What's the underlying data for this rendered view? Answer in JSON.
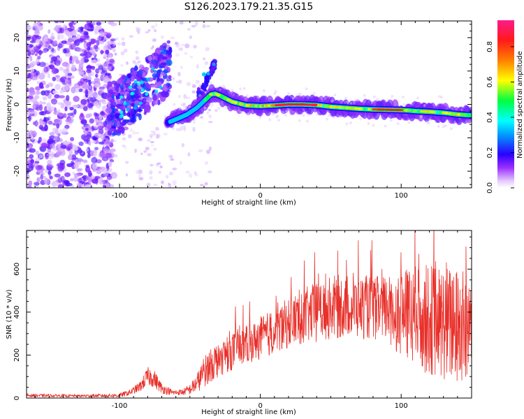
{
  "figure": {
    "title": "S126.2023.179.21.35.G15"
  },
  "chart_data": [
    {
      "type": "heatmap",
      "xlabel": "Height of straight line (km)",
      "ylabel": "Frequency (Hz)",
      "xlim": [
        -166,
        150
      ],
      "ylim": [
        -25,
        25
      ],
      "xticks": [
        -100,
        0,
        100
      ],
      "xtick_labels": [
        "-100",
        "0",
        "100"
      ],
      "yticks": [
        -20,
        -10,
        0,
        10,
        20
      ],
      "ytick_labels": [
        "-20",
        "-10",
        "0",
        "10",
        "20"
      ],
      "grid": false,
      "colorbar": {
        "label": "Normalized spectral amplitude",
        "range": [
          0,
          0.95
        ],
        "ticks": [
          0.0,
          0.2,
          0.4,
          0.6,
          0.8
        ],
        "tick_labels": [
          "0.0",
          "0.2",
          "0.4",
          "0.6",
          "0.8"
        ],
        "colormap": "hsv-like: white, purple, blue, cyan, green, yellow, orange, red, magenta"
      },
      "ridge": {
        "x": [
          -66,
          -60,
          -52,
          -45,
          -40,
          -35,
          -32,
          -28,
          -20,
          -10,
          0,
          10,
          20,
          30,
          40,
          50,
          60,
          70,
          80,
          90,
          100,
          105,
          110,
          120,
          130,
          140,
          150
        ],
        "y": [
          -5.5,
          -4.5,
          -3,
          -1,
          1,
          3,
          3.2,
          2.5,
          0.8,
          -0.3,
          -0.5,
          -0.3,
          0,
          0,
          -0.2,
          -0.7,
          -1,
          -1.3,
          -1.5,
          -1.6,
          -1.7,
          -1.8,
          -2,
          -2.2,
          -2.5,
          -3,
          -3.3
        ]
      },
      "branch": {
        "x": [
          -42,
          -39,
          -36,
          -33
        ],
        "y": [
          3,
          6,
          9,
          12
        ]
      },
      "cloud": {
        "x": [
          -105,
          -98,
          -92,
          -85,
          -80,
          -75,
          -70,
          -66
        ],
        "y": [
          -1.5,
          0,
          2,
          4,
          6,
          7.5,
          9,
          11
        ]
      }
    },
    {
      "type": "line",
      "xlabel": "Height of straight line (km)",
      "ylabel": "SNR (10 * v/v)",
      "xlim": [
        -166,
        150
      ],
      "ylim": [
        0,
        780
      ],
      "xticks": [
        -100,
        0,
        100
      ],
      "xtick_labels": [
        "-100",
        "0",
        "100"
      ],
      "yticks": [
        0,
        200,
        400,
        600
      ],
      "ytick_labels": [
        "0",
        "200",
        "400",
        "600"
      ],
      "grid": false,
      "color": "#e8302a",
      "envelope": {
        "x": [
          -166,
          -130,
          -100,
          -92,
          -85,
          -80,
          -76,
          -70,
          -62,
          -55,
          -50,
          -45,
          -40,
          -35,
          -25,
          -15,
          -5,
          0,
          10,
          20,
          30,
          40,
          50,
          60,
          70,
          80,
          90,
          95,
          100,
          110,
          120,
          130,
          140,
          150
        ],
        "base": [
          12,
          10,
          12,
          28,
          55,
          100,
          95,
          45,
          25,
          28,
          40,
          70,
          120,
          160,
          200,
          235,
          260,
          280,
          310,
          350,
          380,
          400,
          420,
          430,
          425,
          420,
          415,
          400,
          395,
          380,
          365,
          350,
          330,
          320
        ],
        "spread": [
          8,
          6,
          10,
          14,
          25,
          45,
          45,
          25,
          12,
          15,
          25,
          45,
          70,
          85,
          85,
          90,
          90,
          100,
          110,
          120,
          130,
          140,
          150,
          150,
          150,
          150,
          160,
          175,
          200,
          240,
          260,
          270,
          280,
          280
        ]
      }
    }
  ]
}
